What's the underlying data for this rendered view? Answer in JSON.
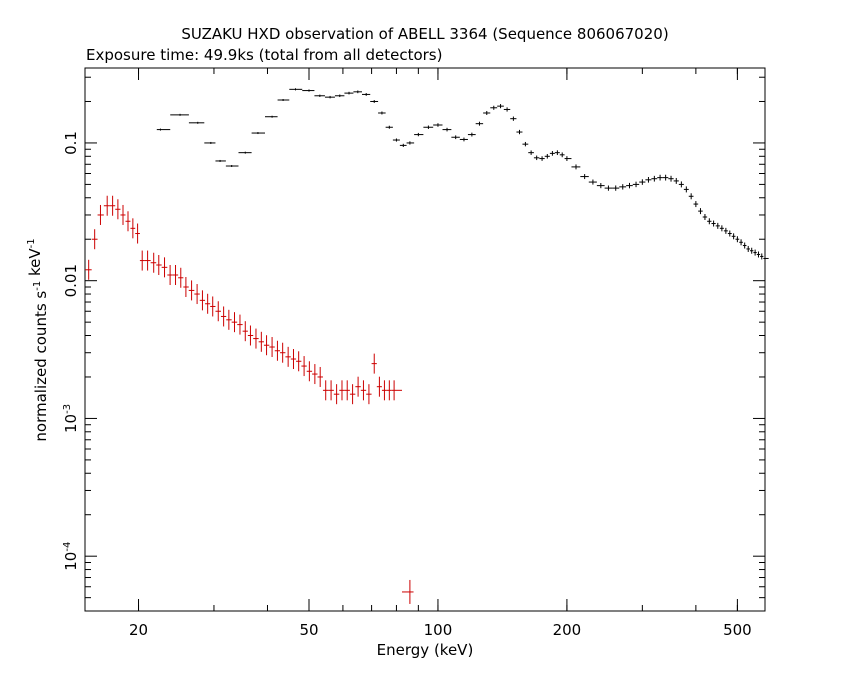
{
  "chart_data": {
    "type": "scatter",
    "title": "SUZAKU HXD observation of ABELL 3364 (Sequence 806067020)",
    "subtitle": "Exposure time: 49.9ks (total from all detectors)",
    "xlabel": "Energy (keV)",
    "ylabel": "normalized counts s^-1 keV^-1",
    "x_scale": "log",
    "y_scale": "log",
    "xlim": [
      15,
      580
    ],
    "ylim": [
      4e-05,
      0.35
    ],
    "grid": false,
    "x_ticks": [
      {
        "value": 20,
        "label": "20"
      },
      {
        "value": 50,
        "label": "50"
      },
      {
        "value": 100,
        "label": "100"
      },
      {
        "value": 200,
        "label": "200"
      },
      {
        "value": 500,
        "label": "500"
      }
    ],
    "y_ticks": [
      {
        "value": 0.1,
        "label": "0.1"
      },
      {
        "value": 0.01,
        "label": "0.01"
      },
      {
        "value": 0.001,
        "label": "10^-3"
      },
      {
        "value": 0.0001,
        "label": "10^-4"
      }
    ],
    "series": [
      {
        "color": "#000000",
        "points": [
          [
            22.5,
            0.125
          ],
          [
            25,
            0.16
          ],
          [
            27.5,
            0.14
          ],
          [
            29.5,
            0.1
          ],
          [
            31,
            0.074
          ],
          [
            33,
            0.068
          ],
          [
            35.5,
            0.085
          ],
          [
            38,
            0.118
          ],
          [
            41,
            0.155
          ],
          [
            43.5,
            0.205
          ],
          [
            46.5,
            0.245
          ],
          [
            50,
            0.24
          ],
          [
            53,
            0.22
          ],
          [
            56,
            0.215
          ],
          [
            59,
            0.22
          ],
          [
            62,
            0.23
          ],
          [
            65,
            0.235
          ],
          [
            68,
            0.225
          ],
          [
            71,
            0.2
          ],
          [
            74,
            0.165
          ],
          [
            77,
            0.13
          ],
          [
            80,
            0.105
          ],
          [
            83,
            0.096
          ],
          [
            86,
            0.1
          ],
          [
            90,
            0.115
          ],
          [
            95,
            0.13
          ],
          [
            100,
            0.135
          ],
          [
            105,
            0.125
          ],
          [
            110,
            0.11
          ],
          [
            115,
            0.106
          ],
          [
            120,
            0.115
          ],
          [
            125,
            0.138
          ],
          [
            130,
            0.165
          ],
          [
            135,
            0.18
          ],
          [
            140,
            0.185
          ],
          [
            145,
            0.175
          ],
          [
            150,
            0.15
          ],
          [
            155,
            0.12
          ],
          [
            160,
            0.098
          ],
          [
            165,
            0.085
          ],
          [
            170,
            0.078
          ],
          [
            175,
            0.077
          ],
          [
            180,
            0.08
          ],
          [
            185,
            0.084
          ],
          [
            190,
            0.085
          ],
          [
            195,
            0.082
          ],
          [
            200,
            0.077
          ],
          [
            210,
            0.067
          ],
          [
            220,
            0.057
          ],
          [
            230,
            0.052
          ],
          [
            240,
            0.049
          ],
          [
            250,
            0.047
          ],
          [
            260,
            0.047
          ],
          [
            270,
            0.048
          ],
          [
            280,
            0.049
          ],
          [
            290,
            0.05
          ],
          [
            300,
            0.052
          ],
          [
            310,
            0.054
          ],
          [
            320,
            0.055
          ],
          [
            330,
            0.056
          ],
          [
            340,
            0.056
          ],
          [
            350,
            0.055
          ],
          [
            360,
            0.053
          ],
          [
            370,
            0.05
          ],
          [
            380,
            0.046
          ],
          [
            390,
            0.041
          ],
          [
            400,
            0.036
          ],
          [
            410,
            0.032
          ],
          [
            420,
            0.029
          ],
          [
            430,
            0.027
          ],
          [
            440,
            0.026
          ],
          [
            450,
            0.025
          ],
          [
            460,
            0.024
          ],
          [
            470,
            0.023
          ],
          [
            480,
            0.022
          ],
          [
            490,
            0.021
          ],
          [
            500,
            0.02
          ],
          [
            510,
            0.019
          ],
          [
            520,
            0.018
          ],
          [
            530,
            0.017
          ],
          [
            540,
            0.0165
          ],
          [
            550,
            0.016
          ],
          [
            560,
            0.0155
          ],
          [
            570,
            0.015
          ],
          [
            580,
            0.0145
          ]
        ]
      },
      {
        "color": "#cc0000",
        "points": [
          [
            15.3,
            0.012
          ],
          [
            15.8,
            0.02
          ],
          [
            16.3,
            0.03
          ],
          [
            16.9,
            0.035
          ],
          [
            17.4,
            0.035
          ],
          [
            17.9,
            0.033
          ],
          [
            18.4,
            0.03
          ],
          [
            18.9,
            0.027
          ],
          [
            19.4,
            0.024
          ],
          [
            19.9,
            0.022
          ],
          [
            20.4,
            0.014
          ],
          [
            21,
            0.014
          ],
          [
            21.7,
            0.0135
          ],
          [
            22.3,
            0.013
          ],
          [
            23,
            0.0125
          ],
          [
            23.7,
            0.011
          ],
          [
            24.4,
            0.011
          ],
          [
            25.1,
            0.0105
          ],
          [
            25.8,
            0.009
          ],
          [
            26.6,
            0.0085
          ],
          [
            27.4,
            0.008
          ],
          [
            28.2,
            0.0072
          ],
          [
            29,
            0.0068
          ],
          [
            29.8,
            0.0065
          ],
          [
            30.7,
            0.006
          ],
          [
            31.6,
            0.0055
          ],
          [
            32.5,
            0.0052
          ],
          [
            33.5,
            0.005
          ],
          [
            34.5,
            0.0048
          ],
          [
            35.5,
            0.0043
          ],
          [
            36.5,
            0.004
          ],
          [
            37.6,
            0.0038
          ],
          [
            38.7,
            0.0036
          ],
          [
            39.8,
            0.0034
          ],
          [
            41,
            0.0033
          ],
          [
            42.2,
            0.0031
          ],
          [
            43.4,
            0.003
          ],
          [
            44.7,
            0.0028
          ],
          [
            46,
            0.0027
          ],
          [
            47.3,
            0.0026
          ],
          [
            48.7,
            0.0024
          ],
          [
            50.1,
            0.0022
          ],
          [
            51.6,
            0.0021
          ],
          [
            53.1,
            0.002
          ],
          [
            54.7,
            0.0016
          ],
          [
            56.3,
            0.0016
          ],
          [
            58,
            0.0015
          ],
          [
            59.7,
            0.0016
          ],
          [
            61.4,
            0.0016
          ],
          [
            63.2,
            0.0015
          ],
          [
            65.1,
            0.0017
          ],
          [
            67,
            0.0016
          ],
          [
            69,
            0.0015
          ],
          [
            71,
            0.0025
          ],
          [
            73,
            0.0017
          ],
          [
            75,
            0.0016
          ],
          [
            77,
            0.0016
          ],
          [
            79,
            0.0016
          ],
          [
            86,
            5.5e-05
          ]
        ]
      }
    ]
  }
}
